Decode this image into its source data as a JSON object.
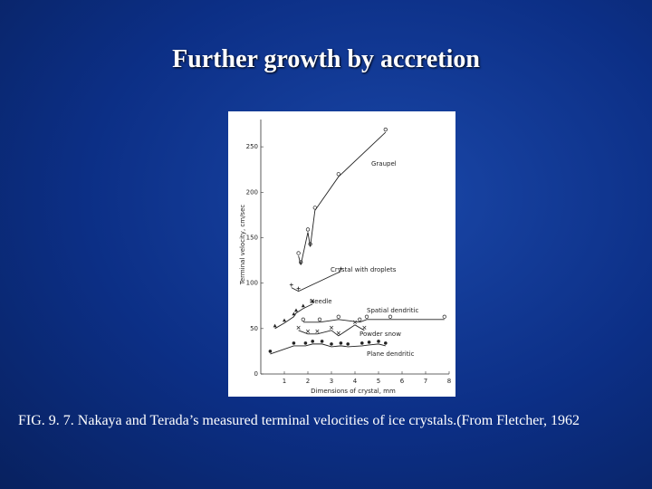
{
  "title": "Further growth by accretion",
  "caption": "FIG. 9. 7. Nakaya and Terada’s measured terminal velocities of ice crystals.(From Fletcher, 1962",
  "chart_data": {
    "type": "scatter",
    "x_label": "Dimensions of crystal, mm",
    "y_label": "Terminal velocity, cm/sec",
    "xlim": [
      0,
      8
    ],
    "xticks": [
      1,
      2,
      3,
      4,
      5,
      6,
      7,
      8
    ],
    "ylim": [
      0,
      280
    ],
    "yticks": [
      0,
      50,
      100,
      150,
      200,
      250
    ],
    "series": [
      {
        "name": "Graupel",
        "color": "#222222",
        "marker": "open-circle",
        "x": [
          1.6,
          1.7,
          2.0,
          2.1,
          2.3,
          3.3,
          5.3
        ],
        "values": [
          130,
          120,
          156,
          140,
          180,
          217,
          266
        ]
      },
      {
        "name": "Crystal with droplets",
        "color": "#222222",
        "marker": "plus",
        "x": [
          1.3,
          1.6,
          3.4
        ],
        "values": [
          95,
          91,
          113
        ]
      },
      {
        "name": "Needle",
        "color": "#222222",
        "marker": "triangle",
        "x": [
          0.6,
          1.0,
          1.4,
          1.5,
          1.8,
          2.2
        ],
        "values": [
          50,
          56,
          63,
          67,
          72,
          77
        ]
      },
      {
        "name": "Spatial dendritic",
        "color": "#222222",
        "marker": "open-circle",
        "x": [
          1.8,
          2.5,
          3.3,
          4.2,
          4.5,
          5.5,
          7.8
        ],
        "values": [
          57,
          57,
          60,
          57,
          60,
          60,
          60
        ]
      },
      {
        "name": "Powder snow",
        "color": "#222222",
        "marker": "cross",
        "x": [
          1.6,
          2.0,
          2.4,
          3.0,
          3.3,
          4.0,
          4.4
        ],
        "values": [
          48,
          44,
          44,
          48,
          42,
          54,
          48
        ]
      },
      {
        "name": "Plane dendritic",
        "color": "#222222",
        "marker": "dot",
        "x": [
          0.4,
          1.4,
          1.9,
          2.2,
          2.6,
          3.0,
          3.4,
          3.7,
          4.3,
          4.6,
          5.0,
          5.3
        ],
        "values": [
          22,
          31,
          31,
          33,
          33,
          30,
          31,
          30,
          31,
          32,
          33,
          31
        ]
      }
    ]
  }
}
